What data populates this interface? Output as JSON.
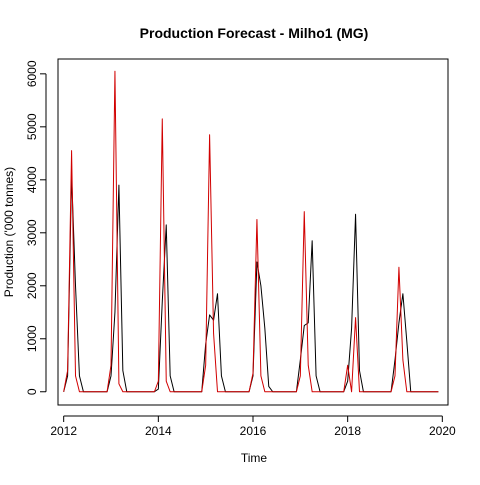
{
  "chart_data": {
    "type": "line",
    "title": "Production Forecast - Milho1 (MG)",
    "xlabel": "Time",
    "ylabel": "Production ('000 tonnes)",
    "xlim": [
      2011.88,
      2020.12
    ],
    "ylim": [
      -250,
      6280
    ],
    "xticks": [
      2012,
      2014,
      2016,
      2018,
      2020
    ],
    "yticks": [
      0,
      1000,
      2000,
      3000,
      4000,
      5000,
      6000
    ],
    "legend": "none",
    "grid": false,
    "series": [
      {
        "color": "#000000",
        "x": [
          2012.0,
          2012.083,
          2012.167,
          2012.25,
          2012.333,
          2012.417,
          2012.5,
          2012.583,
          2012.667,
          2012.75,
          2012.833,
          2012.917,
          2013.0,
          2013.083,
          2013.167,
          2013.25,
          2013.333,
          2013.417,
          2013.5,
          2013.583,
          2013.667,
          2013.75,
          2013.833,
          2013.917,
          2014.0,
          2014.083,
          2014.167,
          2014.25,
          2014.333,
          2014.417,
          2014.5,
          2014.583,
          2014.667,
          2014.75,
          2014.833,
          2014.917,
          2015.0,
          2015.083,
          2015.167,
          2015.25,
          2015.333,
          2015.417,
          2015.5,
          2015.583,
          2015.667,
          2015.75,
          2015.833,
          2015.917,
          2016.0,
          2016.083,
          2016.167,
          2016.25,
          2016.333,
          2016.417,
          2016.5,
          2016.583,
          2016.667,
          2016.75,
          2016.833,
          2016.917,
          2017.0,
          2017.083,
          2017.167,
          2017.25,
          2017.333,
          2017.417,
          2017.5,
          2017.583,
          2017.667,
          2017.75,
          2017.833,
          2017.917,
          2018.0,
          2018.083,
          2018.167,
          2018.25,
          2018.333,
          2018.417,
          2018.5,
          2018.583,
          2018.667,
          2018.75,
          2018.833,
          2018.917,
          2019.0,
          2019.083,
          2019.167,
          2019.25,
          2019.333,
          2019.417,
          2019.5,
          2019.583,
          2019.667,
          2019.75,
          2019.833,
          2019.917
        ],
        "y": [
          0,
          300,
          4100,
          2000,
          300,
          0,
          0,
          0,
          0,
          0,
          0,
          0,
          300,
          1500,
          3900,
          400,
          0,
          0,
          0,
          0,
          0,
          0,
          0,
          0,
          50,
          1700,
          3150,
          300,
          0,
          0,
          0,
          0,
          0,
          0,
          0,
          0,
          900,
          1450,
          1350,
          1850,
          300,
          0,
          0,
          0,
          0,
          0,
          0,
          0,
          300,
          2450,
          2000,
          1200,
          100,
          0,
          0,
          0,
          0,
          0,
          0,
          0,
          600,
          1250,
          1300,
          2850,
          300,
          0,
          0,
          0,
          0,
          0,
          0,
          0,
          200,
          1200,
          3350,
          400,
          0,
          0,
          0,
          0,
          0,
          0,
          0,
          0,
          600,
          1300,
          1850,
          950,
          0,
          0,
          0,
          0,
          0,
          0,
          0,
          0
        ]
      },
      {
        "color": "#d10000",
        "x": [
          2012.0,
          2012.083,
          2012.167,
          2012.25,
          2012.333,
          2012.417,
          2012.5,
          2012.583,
          2012.667,
          2012.75,
          2012.833,
          2012.917,
          2013.0,
          2013.083,
          2013.167,
          2013.25,
          2013.333,
          2013.417,
          2013.5,
          2013.583,
          2013.667,
          2013.75,
          2013.833,
          2013.917,
          2014.0,
          2014.083,
          2014.167,
          2014.25,
          2014.333,
          2014.417,
          2014.5,
          2014.583,
          2014.667,
          2014.75,
          2014.833,
          2014.917,
          2015.0,
          2015.083,
          2015.167,
          2015.25,
          2015.333,
          2015.417,
          2015.5,
          2015.583,
          2015.667,
          2015.75,
          2015.833,
          2015.917,
          2016.0,
          2016.083,
          2016.167,
          2016.25,
          2016.333,
          2016.417,
          2016.5,
          2016.583,
          2016.667,
          2016.75,
          2016.833,
          2016.917,
          2017.0,
          2017.083,
          2017.167,
          2017.25,
          2017.333,
          2017.417,
          2017.5,
          2017.583,
          2017.667,
          2017.75,
          2017.833,
          2017.917,
          2018.0,
          2018.083,
          2018.167,
          2018.25,
          2018.333,
          2018.417,
          2018.5,
          2018.583,
          2018.667,
          2018.75,
          2018.833,
          2018.917,
          2019.0,
          2019.083,
          2019.167,
          2019.25,
          2019.333,
          2019.417,
          2019.5,
          2019.583,
          2019.667,
          2019.75,
          2019.833,
          2019.917
        ],
        "y": [
          0,
          400,
          4550,
          300,
          0,
          0,
          0,
          0,
          0,
          0,
          0,
          0,
          500,
          6050,
          150,
          0,
          0,
          0,
          0,
          0,
          0,
          0,
          0,
          0,
          200,
          5150,
          200,
          0,
          0,
          0,
          0,
          0,
          0,
          0,
          0,
          0,
          500,
          4850,
          1100,
          0,
          0,
          0,
          0,
          0,
          0,
          0,
          0,
          0,
          350,
          3250,
          300,
          0,
          0,
          0,
          0,
          0,
          0,
          0,
          0,
          0,
          300,
          3400,
          500,
          0,
          0,
          0,
          0,
          0,
          0,
          0,
          0,
          0,
          500,
          0,
          1400,
          0,
          0,
          0,
          0,
          0,
          0,
          0,
          0,
          0,
          300,
          2350,
          600,
          0,
          0,
          0,
          0,
          0,
          0,
          0,
          0,
          0
        ]
      }
    ]
  }
}
